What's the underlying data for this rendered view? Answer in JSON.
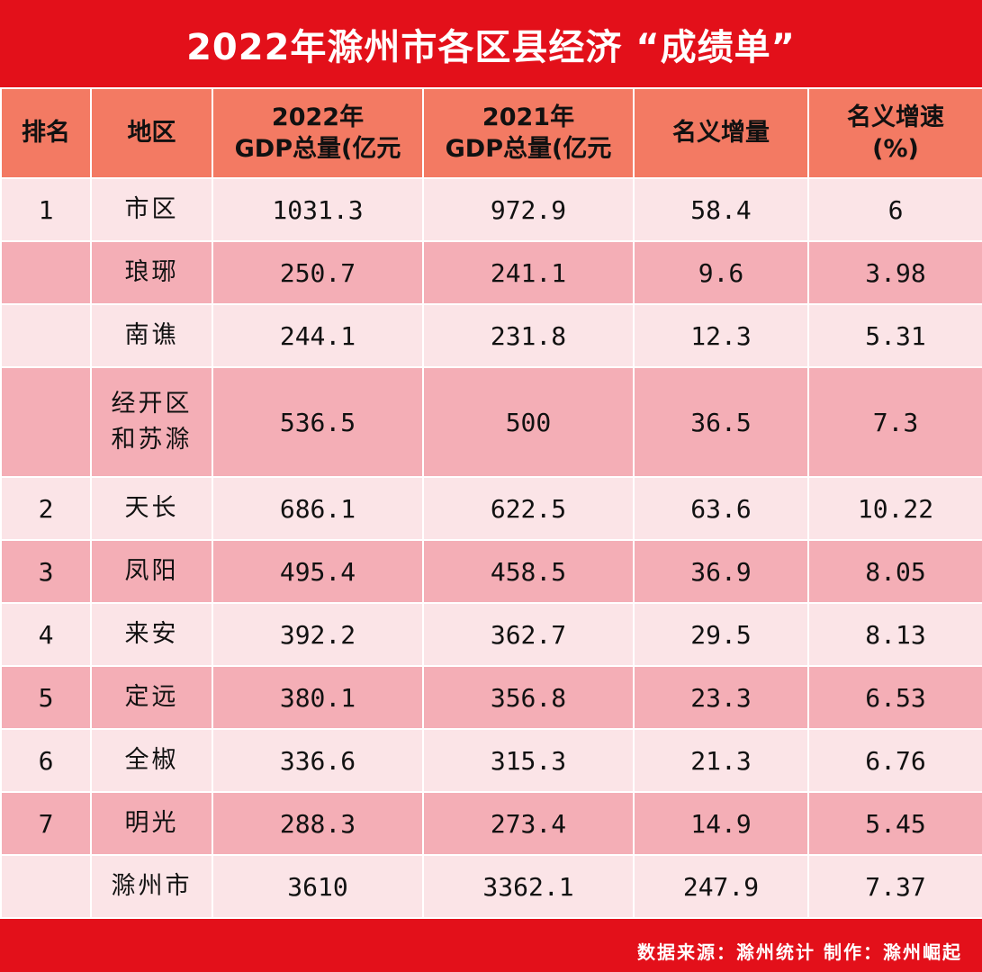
{
  "title": "2022年滁州市各区县经济 “成绩单”",
  "headers": {
    "rank": "排名",
    "region": "地区",
    "gdp2022_line1": "2022年",
    "gdp2022_line2": "GDP总量(亿元",
    "gdp2021_line1": "2021年",
    "gdp2021_line2": "GDP总量(亿元",
    "increase": "名义增量",
    "growth_line1": "名义增速",
    "growth_line2": "(%)"
  },
  "rows": [
    {
      "rank": "1",
      "region": "市区",
      "gdp2022": "1031.3",
      "gdp2021": "972.9",
      "increase": "58.4",
      "growth": "6"
    },
    {
      "rank": "",
      "region": "琅琊",
      "gdp2022": "250.7",
      "gdp2021": "241.1",
      "increase": "9.6",
      "growth": "3.98"
    },
    {
      "rank": "",
      "region": "南谯",
      "gdp2022": "244.1",
      "gdp2021": "231.8",
      "increase": "12.3",
      "growth": "5.31"
    },
    {
      "rank": "",
      "region_line1": "经开区",
      "region_line2": "和苏滁",
      "gdp2022": "536.5",
      "gdp2021": "500",
      "increase": "36.5",
      "growth": "7.3"
    },
    {
      "rank": "2",
      "region": "天长",
      "gdp2022": "686.1",
      "gdp2021": "622.5",
      "increase": "63.6",
      "growth": "10.22"
    },
    {
      "rank": "3",
      "region": "凤阳",
      "gdp2022": "495.4",
      "gdp2021": "458.5",
      "increase": "36.9",
      "growth": "8.05"
    },
    {
      "rank": "4",
      "region": "来安",
      "gdp2022": "392.2",
      "gdp2021": "362.7",
      "increase": "29.5",
      "growth": "8.13"
    },
    {
      "rank": "5",
      "region": "定远",
      "gdp2022": "380.1",
      "gdp2021": "356.8",
      "increase": "23.3",
      "growth": "6.53"
    },
    {
      "rank": "6",
      "region": "全椒",
      "gdp2022": "336.6",
      "gdp2021": "315.3",
      "increase": "21.3",
      "growth": "6.76"
    },
    {
      "rank": "7",
      "region": "明光",
      "gdp2022": "288.3",
      "gdp2021": "273.4",
      "increase": "14.9",
      "growth": "5.45"
    },
    {
      "rank": "",
      "region": "滁州市",
      "gdp2022": "3610",
      "gdp2021": "3362.1",
      "increase": "247.9",
      "growth": "7.37"
    }
  ],
  "footer": "数据来源：滁州统计  制作：滁州崛起",
  "colors": {
    "banner": "#e3101a",
    "header": "#f37a63",
    "row_light": "#fbe4e7",
    "row_dark": "#f4aeb6"
  }
}
